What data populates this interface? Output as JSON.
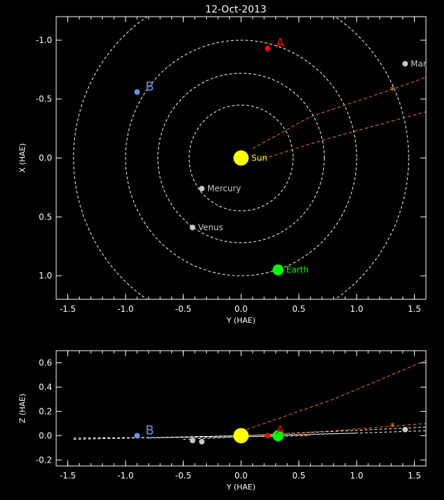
{
  "title": "12-Oct-2013",
  "chart_data": [
    {
      "type": "scatter",
      "panel": "top",
      "xlabel": "Y (HAE)",
      "ylabel": "X (HAE)",
      "xlim": [
        -1.6,
        1.6
      ],
      "ylim": [
        1.2,
        -1.2
      ],
      "xticks": [
        -1.5,
        -1.0,
        -0.5,
        0.0,
        0.5,
        1.0,
        1.5
      ],
      "xtick_labels": [
        "-1.5",
        "-1.0",
        "-0.5",
        "0.0",
        "0.5",
        "1.0",
        "1.5"
      ],
      "yticks": [
        -1.0,
        -0.5,
        0.0,
        0.5,
        1.0
      ],
      "ytick_labels": [
        "-1.0",
        "-0.5",
        "0.0",
        "0.5",
        "1.0"
      ],
      "orbits": [
        0.45,
        0.72,
        1.0,
        1.45
      ],
      "bodies": [
        {
          "name": "Sun",
          "label": "Sun",
          "x": 0.0,
          "y": 0.0,
          "color": "#ffff00",
          "r": 11
        },
        {
          "name": "Mercury",
          "label": "Mercury",
          "x": -0.34,
          "y": 0.26,
          "color": "#c8c8c8",
          "r": 4
        },
        {
          "name": "Venus",
          "label": "Venus",
          "x": -0.42,
          "y": 0.59,
          "color": "#c8c8c8",
          "r": 4
        },
        {
          "name": "Earth",
          "label": "Earth",
          "x": 0.32,
          "y": 0.95,
          "color": "#00ff00",
          "r": 8
        },
        {
          "name": "Mars",
          "label": "Mars",
          "x": 1.42,
          "y": -0.8,
          "color": "#c8c8c8",
          "r": 4
        },
        {
          "name": "A",
          "label": "A",
          "x": 0.23,
          "y": -0.93,
          "color": "#ff0000",
          "r": 4,
          "spacecraft": true
        },
        {
          "name": "B",
          "label": "B",
          "x": -0.9,
          "y": -0.56,
          "color": "#6495ed",
          "r": 4,
          "spacecraft": true
        }
      ],
      "tracks": [
        {
          "points": [
            [
              0.1,
              -0.08
            ],
            [
              0.6,
              -0.35
            ],
            [
              1.3,
              -0.58
            ],
            [
              1.7,
              -0.72
            ]
          ]
        },
        {
          "points": [
            [
              0.15,
              0.02
            ],
            [
              0.7,
              -0.15
            ],
            [
              1.7,
              -0.42
            ]
          ]
        }
      ],
      "marker": {
        "x": 1.31,
        "y": -0.58,
        "symbol": "*"
      }
    },
    {
      "type": "scatter",
      "panel": "bottom",
      "xlabel": "Y (HAE)",
      "ylabel": "Z (HAE)",
      "xlim": [
        -1.6,
        1.6
      ],
      "ylim": [
        -0.25,
        0.7
      ],
      "xticks": [
        -1.5,
        -1.0,
        -0.5,
        0.0,
        0.5,
        1.0,
        1.5
      ],
      "xtick_labels": [
        "-1.5",
        "-1.0",
        "-0.5",
        "0.0",
        "0.5",
        "1.0",
        "1.5"
      ],
      "yticks": [
        -0.2,
        0.0,
        0.2,
        0.4,
        0.6
      ],
      "ytick_labels": [
        "-0.2",
        "0.0",
        "0.2",
        "0.4",
        "0.6"
      ],
      "bodies": [
        {
          "name": "Sun",
          "x": 0.0,
          "y": 0.0,
          "color": "#ffff00",
          "r": 11
        },
        {
          "name": "Mercury",
          "x": -0.34,
          "y": -0.05,
          "color": "#c8c8c8",
          "r": 4
        },
        {
          "name": "Venus",
          "x": -0.42,
          "y": -0.04,
          "color": "#c8c8c8",
          "r": 4
        },
        {
          "name": "Earth",
          "x": 0.32,
          "y": 0.0,
          "color": "#00ff00",
          "r": 8
        },
        {
          "name": "Mars",
          "x": 1.42,
          "y": 0.05,
          "color": "#c8c8c8",
          "r": 4
        },
        {
          "name": "A",
          "label": "A",
          "x": 0.23,
          "y": 0.0,
          "color": "#ff0000",
          "r": 4,
          "spacecraft": true
        },
        {
          "name": "B",
          "label": "B",
          "x": -0.9,
          "y": 0.0,
          "color": "#6495ed",
          "r": 4,
          "spacecraft": true
        }
      ],
      "orbit_lines": [
        {
          "points": [
            [
              -1.45,
              -0.03
            ],
            [
              0.0,
              0.0
            ],
            [
              1.6,
              0.07
            ]
          ]
        },
        {
          "points": [
            [
              -1.45,
              -0.02
            ],
            [
              0.0,
              -0.01
            ],
            [
              1.6,
              0.04
            ]
          ]
        },
        {
          "points": [
            [
              -0.8,
              -0.02
            ],
            [
              0.0,
              0.0
            ],
            [
              1.0,
              0.02
            ]
          ]
        },
        {
          "points": [
            [
              -0.5,
              -0.03
            ],
            [
              0.0,
              -0.01
            ],
            [
              0.6,
              0.0
            ]
          ]
        }
      ],
      "tracks": [
        {
          "points": [
            [
              0.05,
              0.05
            ],
            [
              0.8,
              0.3
            ],
            [
              1.6,
              0.62
            ]
          ]
        },
        {
          "points": [
            [
              0.05,
              0.0
            ],
            [
              0.8,
              0.04
            ],
            [
              1.6,
              0.1
            ]
          ]
        }
      ],
      "marker": {
        "x": 1.31,
        "y": 0.08,
        "symbol": "*"
      }
    }
  ]
}
